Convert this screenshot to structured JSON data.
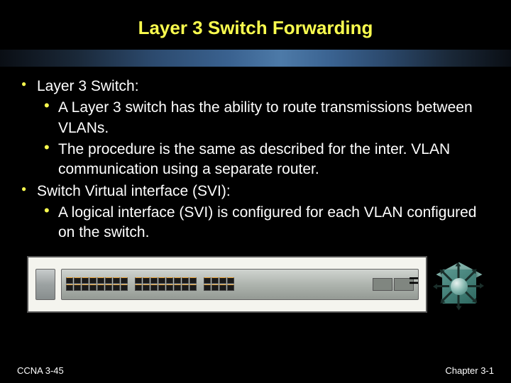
{
  "slide": {
    "title": "Layer 3 Switch Forwarding",
    "background_color": "#000000",
    "title_color": "#fafd4e",
    "title_fontsize": 26,
    "body_color": "#ffffff",
    "body_fontsize": 21,
    "bullet_color": "#fafd4e",
    "bullets": [
      {
        "text": "Layer 3 Switch:",
        "children": [
          "A Layer 3 switch has the ability to route transmissions between VLANs.",
          "The procedure is the same as described for the inter. VLAN communication using a separate router."
        ]
      },
      {
        "text": "Switch Virtual interface (SVI):",
        "children": [
          "A logical interface (SVI) is configured for each VLAN configured on the switch."
        ]
      }
    ]
  },
  "diagram": {
    "type": "infographic",
    "equals_symbol": "=",
    "switch": {
      "body_color": "#aeb4ae",
      "port_groups": [
        8,
        8,
        4
      ],
      "port_rows": 2,
      "port_color": "#1a1a1a",
      "frame_color": "#f4f4ee"
    },
    "router_icon": {
      "cube_color": "#5a9890",
      "ball_gradient": [
        "#e8f2f0",
        "#3e7870"
      ],
      "arrow_color": "#1a2e2a",
      "arrow_count": 8
    }
  },
  "footer": {
    "left": "CCNA 3-45",
    "right": "Chapter 3-1",
    "fontsize": 13,
    "color": "#ffffff"
  },
  "gradient_bar": {
    "colors": [
      "#0a0e14",
      "#2c4a6e",
      "#4d7aa8",
      "#2c4a6e",
      "#0a0e14"
    ],
    "height": 24
  }
}
